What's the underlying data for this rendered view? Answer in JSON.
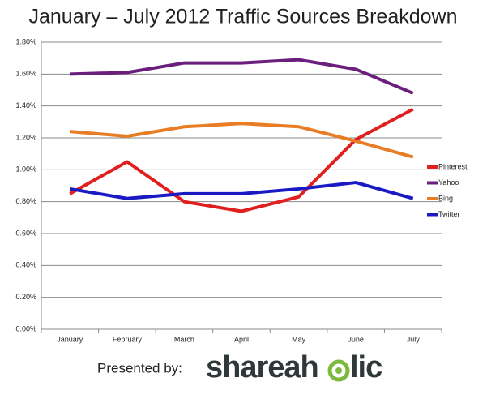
{
  "chart_data": {
    "type": "line",
    "title": "January – July 2012 Traffic Sources Breakdown",
    "categories": [
      "January",
      "February",
      "March",
      "April",
      "May",
      "June",
      "July"
    ],
    "series": [
      {
        "name": "Pinterest",
        "color": "#e0201e",
        "values": [
          0.85,
          1.05,
          0.8,
          0.74,
          0.83,
          1.19,
          1.38
        ]
      },
      {
        "name": "Yahoo",
        "color": "#6b1f7c",
        "values": [
          1.6,
          1.61,
          1.67,
          1.67,
          1.69,
          1.63,
          1.48
        ]
      },
      {
        "name": "Bing",
        "color": "#e87d25",
        "values": [
          1.24,
          1.21,
          1.27,
          1.29,
          1.27,
          1.18,
          1.08
        ]
      },
      {
        "name": "Twitter",
        "color": "#1a1ac4",
        "values": [
          0.88,
          0.82,
          0.85,
          0.85,
          0.88,
          0.92,
          0.82
        ]
      }
    ],
    "ylim": [
      0,
      1.8
    ],
    "yticks": [
      {
        "value": 0,
        "label": "0.00%"
      },
      {
        "value": 0.2,
        "label": "0.20%"
      },
      {
        "value": 0.4,
        "label": "0.40%"
      },
      {
        "value": 0.6,
        "label": "0.60%"
      },
      {
        "value": 0.8,
        "label": "0.80%"
      },
      {
        "value": 1.0,
        "label": "1.00%"
      },
      {
        "value": 1.2,
        "label": "1.20%"
      },
      {
        "value": 1.4,
        "label": "1.40%"
      },
      {
        "value": 1.6,
        "label": "1.60%"
      },
      {
        "value": 1.8,
        "label": "1.80%"
      }
    ],
    "grid": true,
    "legend": "right"
  },
  "footer": {
    "presented_by": "Presented by:",
    "logo_left": "shareah",
    "logo_right": "lic"
  }
}
